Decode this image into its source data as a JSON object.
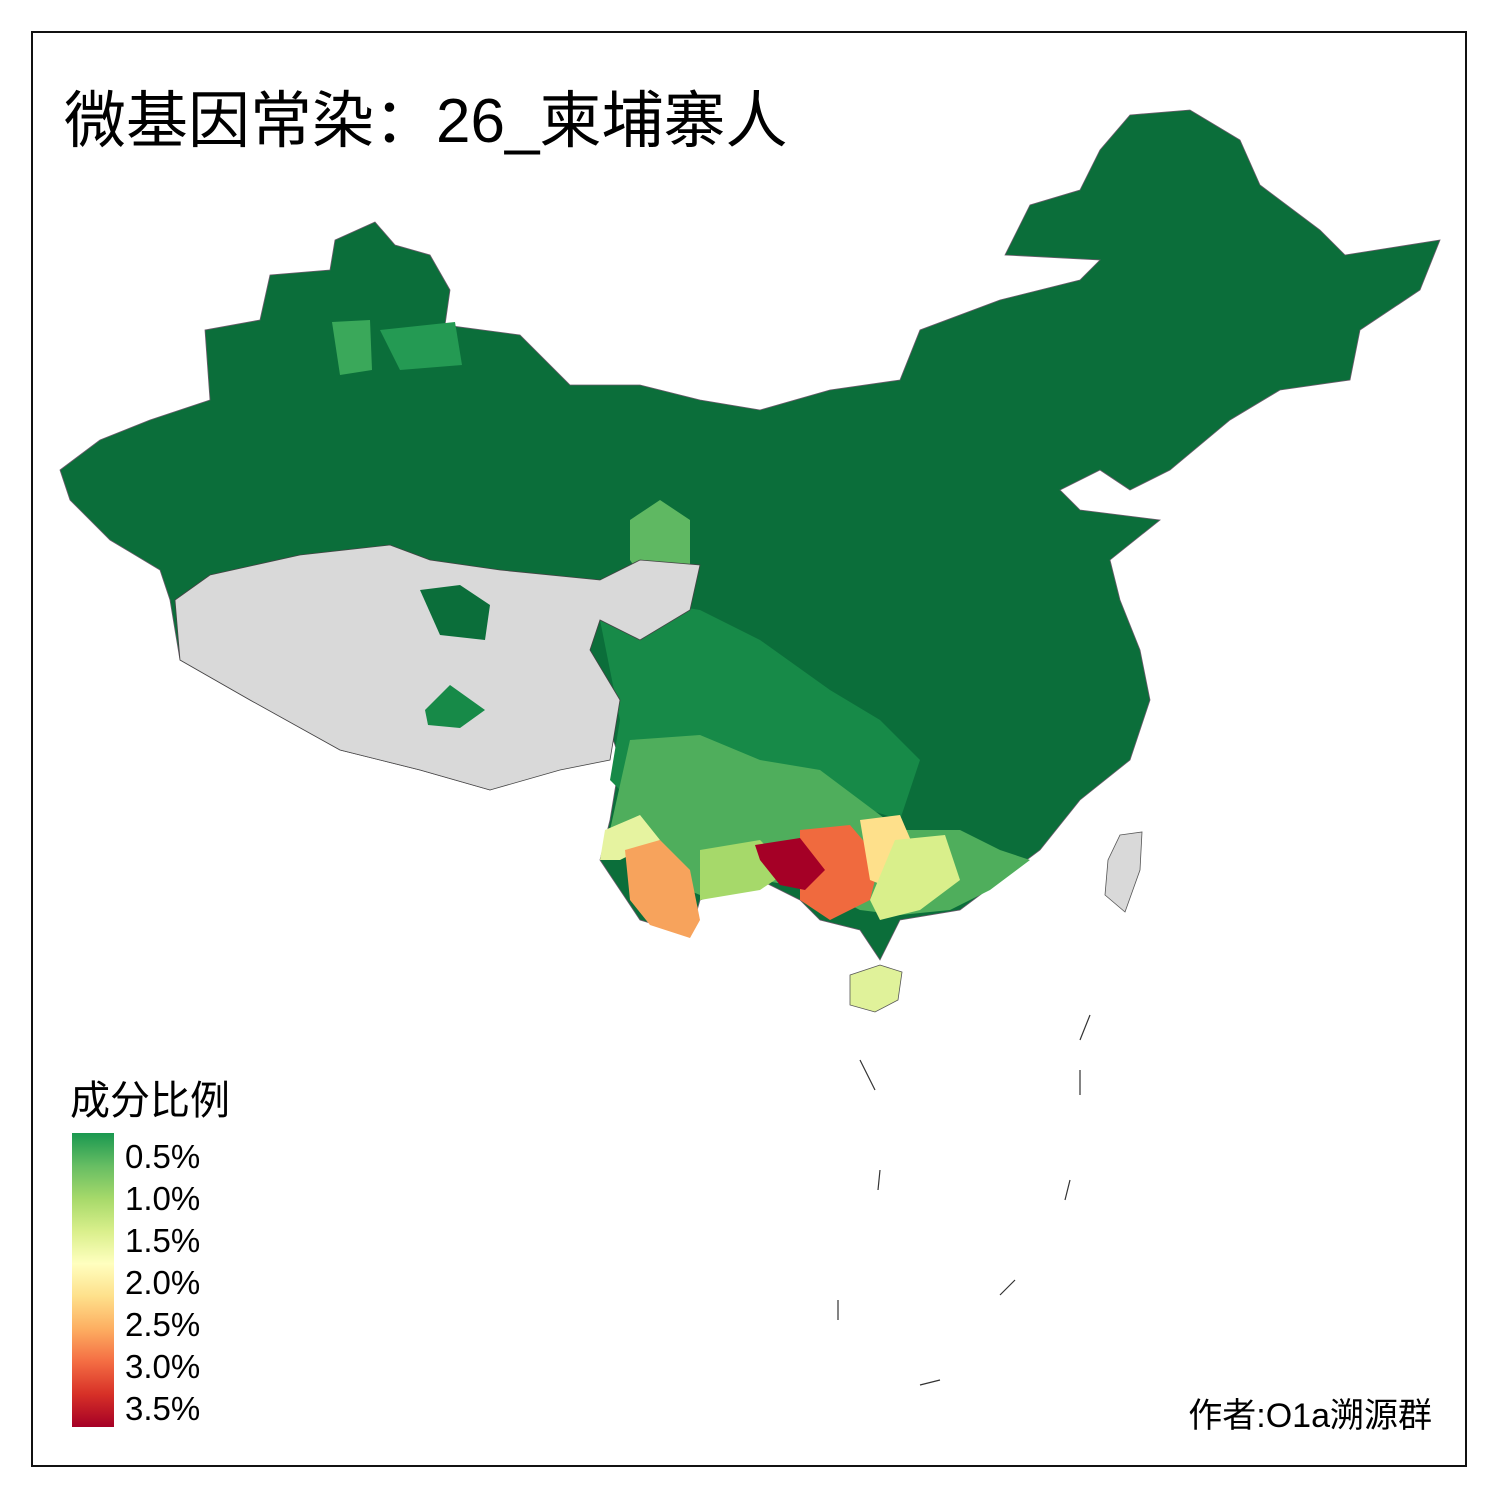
{
  "title": {
    "prefix": "微基因常染：",
    "population": "26_柬埔寨人"
  },
  "legend": {
    "title": "成分比例",
    "ticks": [
      "0.5%",
      "1.0%",
      "1.5%",
      "2.0%",
      "2.5%",
      "3.0%",
      "3.5%"
    ],
    "colors": [
      "#0b6e3a",
      "#1a9850",
      "#66bd63",
      "#a6d96a",
      "#d9ef8b",
      "#ffffbf",
      "#fee08b",
      "#fdae61",
      "#f46d43",
      "#d73027",
      "#a50026"
    ]
  },
  "no_data_color": "#d9d9d9",
  "author": "作者:O1a溯源群"
}
